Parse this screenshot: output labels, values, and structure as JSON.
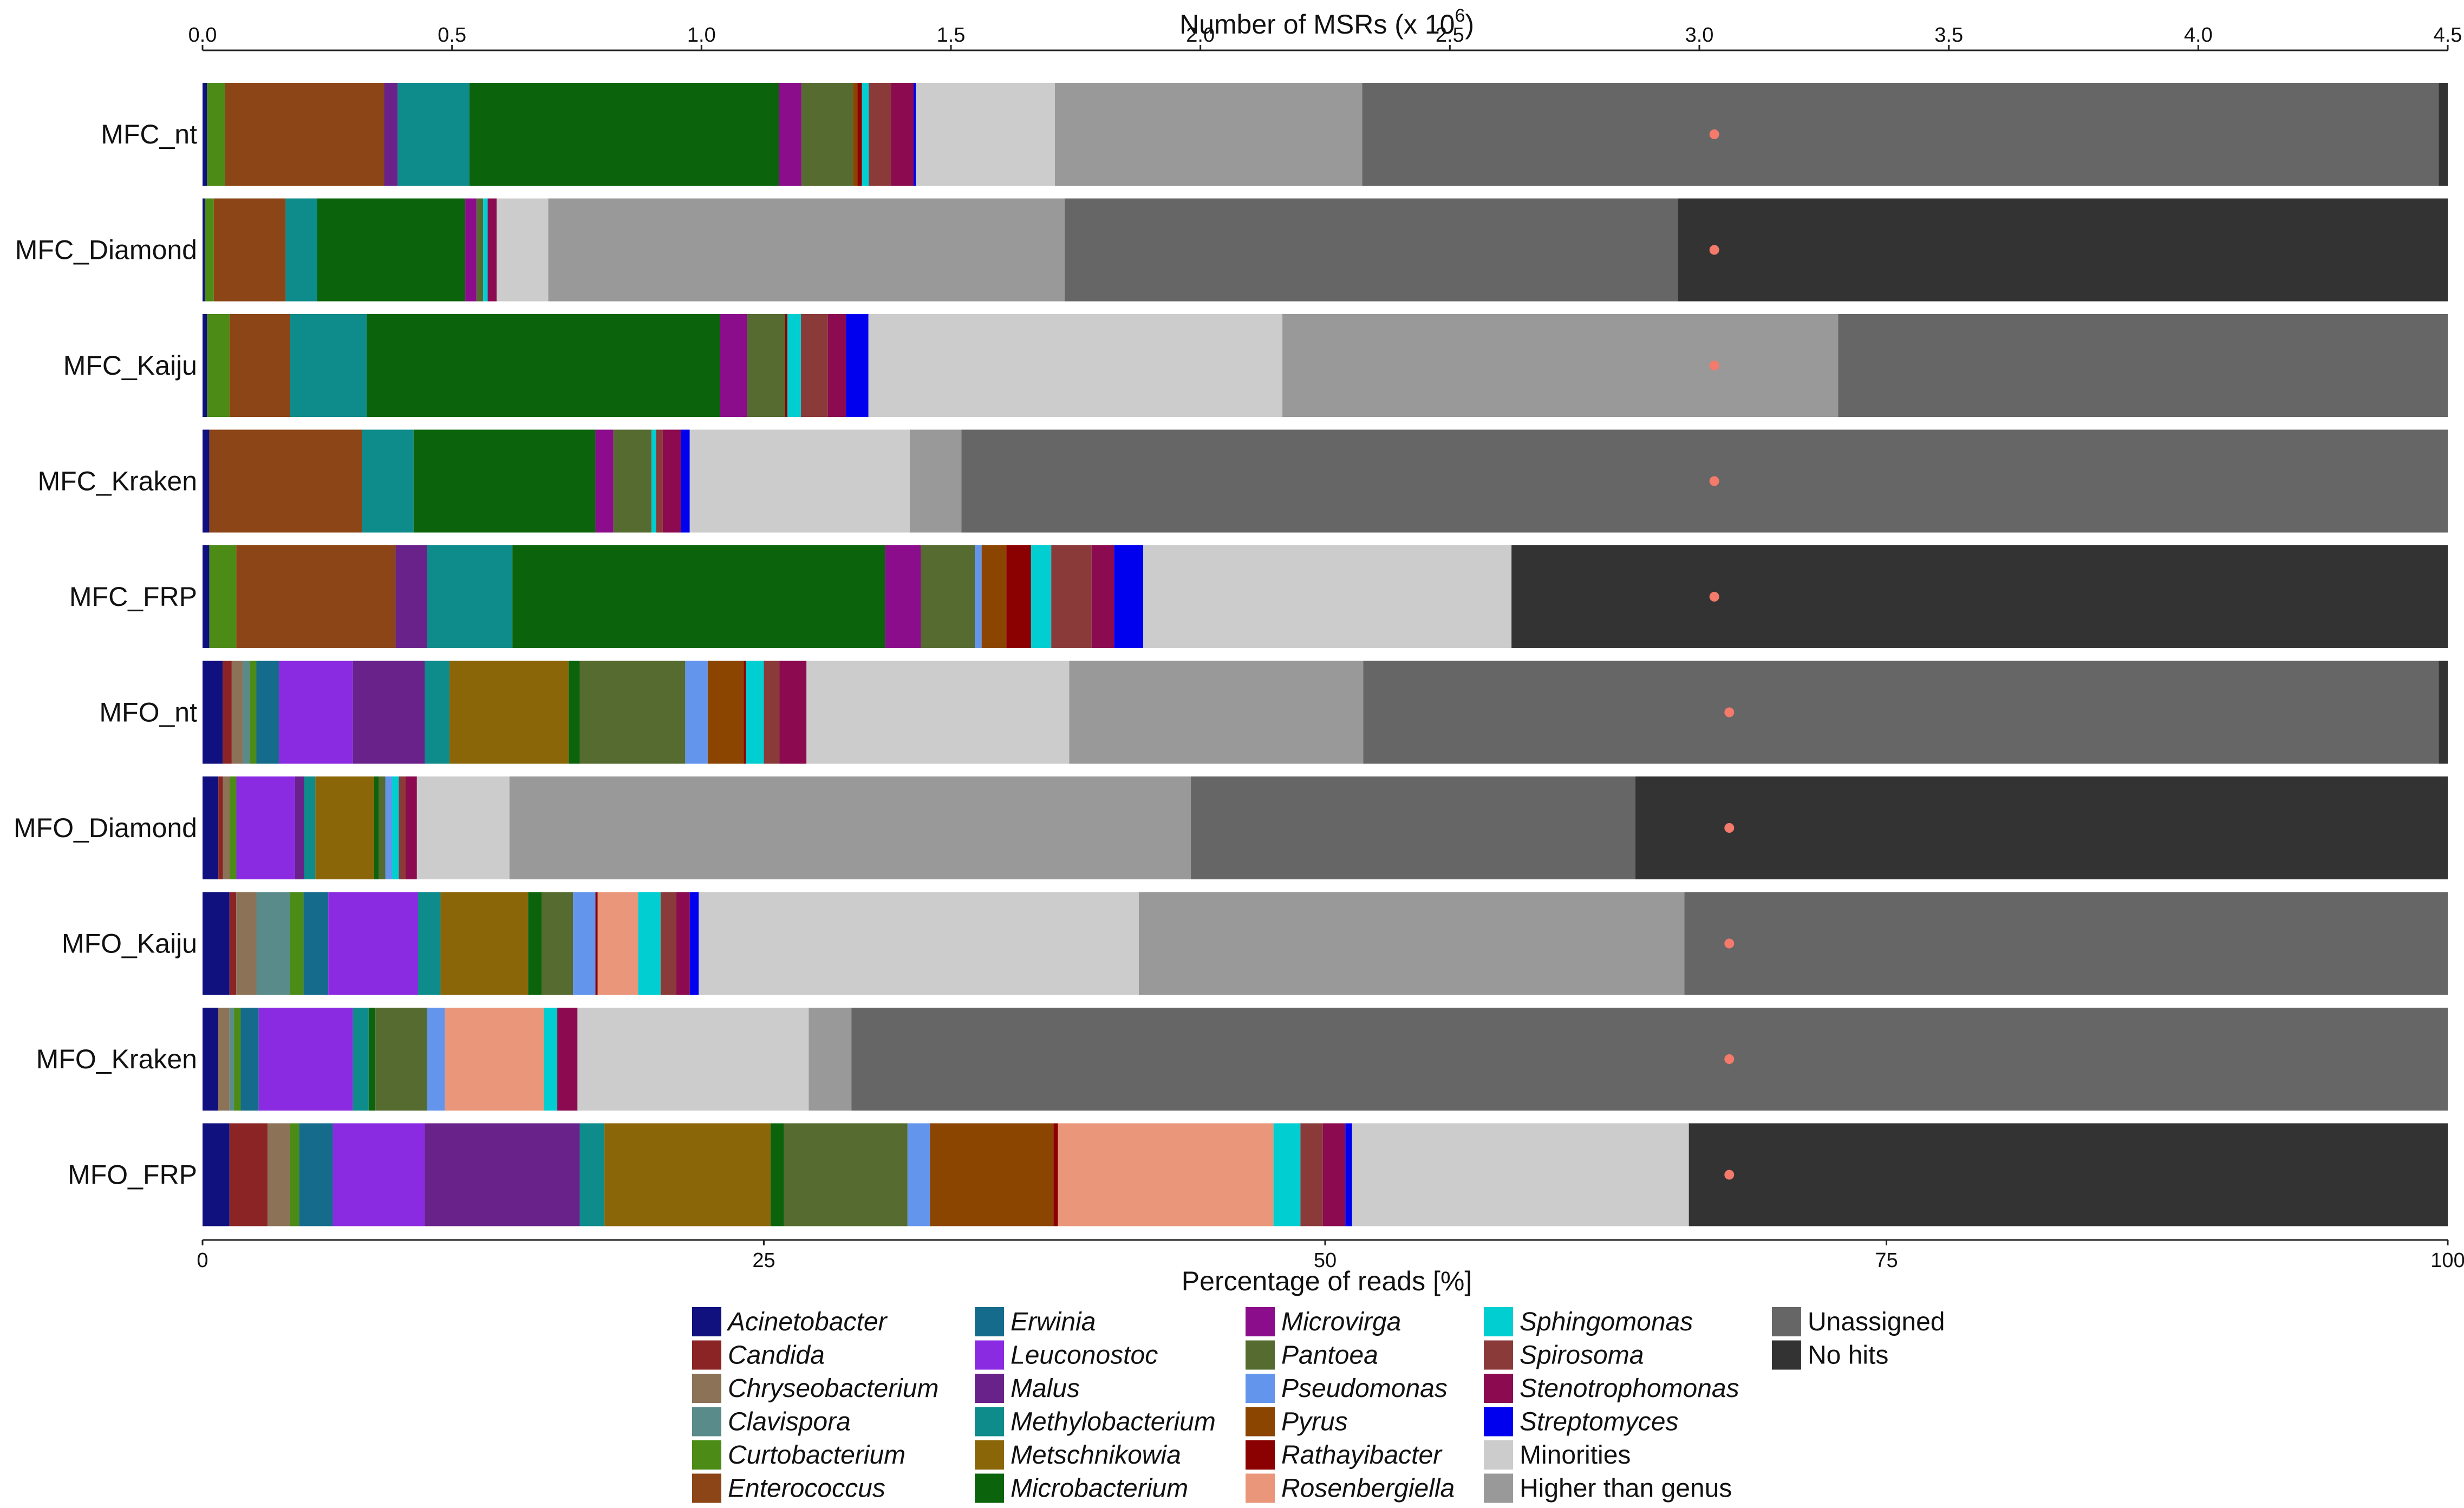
{
  "chart_data": {
    "type": "bar",
    "orientation": "horizontal",
    "stacked": true,
    "top_axis_title": "Number of MSRs (x 10",
    "top_axis_title_sup": "6",
    "top_axis_title_close": ")",
    "top_ticks": [
      "0.0",
      "0.5",
      "1.0",
      "1.5",
      "2.0",
      "2.5",
      "3.0",
      "3.5",
      "4.0",
      "4.5"
    ],
    "top_range": [
      0,
      4.5
    ],
    "xlabel": "Percentage of reads [%]",
    "bottom_ticks": [
      "0",
      "25",
      "50",
      "75",
      "100"
    ],
    "xlim": [
      0,
      100
    ],
    "legend_position": "bottom",
    "colors": {
      "Acinetobacter": "#10107f",
      "Candida": "#8b2525",
      "Chryseobacterium": "#8c7257",
      "Clavispora": "#5a8b8b",
      "Curtobacterium": "#4b8b16",
      "Enterococcus": "#8b4516",
      "Erwinia": "#156b8b",
      "Leuconostoc": "#8a2be2",
      "Malus": "#6a228b",
      "Methylobacterium": "#0e8b8b",
      "Metschnikowia": "#8b6609",
      "Microbacterium": "#0b640b",
      "Microvirga": "#8b0d8b",
      "Pantoea": "#556b2f",
      "Pseudomonas": "#6495ed",
      "Pyrus": "#8b4500",
      "Rathayibacter": "#8b0000",
      "Rosenbergiella": "#e9967a",
      "Sphingomonas": "#00ced1",
      "Spirosoma": "#8b3a3a",
      "Stenotrophomonas": "#8b0a50",
      "Streptomyces": "#0000ee",
      "Minorities": "#cccccc",
      "Higher than genus": "#999999",
      "Unassigned": "#666666",
      "No hits": "#333333"
    },
    "legend": [
      [
        "Acinetobacter",
        "Candida",
        "Chryseobacterium",
        "Clavispora",
        "Curtobacterium",
        "Enterococcus"
      ],
      [
        "Erwinia",
        "Leuconostoc",
        "Malus",
        "Methylobacterium",
        "Metschnikowia",
        "Microbacterium"
      ],
      [
        "Microvirga",
        "Pantoea",
        "Pseudomonas",
        "Pyrus",
        "Rathayibacter",
        "Rosenbergiella"
      ],
      [
        "Sphingomonas",
        "Spirosoma",
        "Stenotrophomonas",
        "Streptomyces",
        "Minorities",
        "Higher than genus"
      ],
      [
        "Unassigned",
        "No hits"
      ]
    ],
    "italic_legend": [
      "Acinetobacter",
      "Candida",
      "Chryseobacterium",
      "Clavispora",
      "Curtobacterium",
      "Enterococcus",
      "Erwinia",
      "Leuconostoc",
      "Malus",
      "Methylobacterium",
      "Metschnikowia",
      "Microbacterium",
      "Microvirga",
      "Pantoea",
      "Pseudomonas",
      "Pyrus",
      "Rathayibacter",
      "Rosenbergiella",
      "Sphingomonas",
      "Spirosoma",
      "Stenotrophomonas",
      "Streptomyces"
    ],
    "series_note": "marker = number of MSRs (x 10^6) on top axis",
    "bars": [
      {
        "label": "MFC_nt",
        "msrs": 3.03,
        "segments": [
          [
            "Acinetobacter",
            0.2
          ],
          [
            "Curtobacterium",
            0.8
          ],
          [
            "Enterococcus",
            7.1
          ],
          [
            "Malus",
            0.6
          ],
          [
            "Methylobacterium",
            3.2
          ],
          [
            "Microbacterium",
            13.8
          ],
          [
            "Microvirga",
            1.0
          ],
          [
            "Pantoea",
            2.3
          ],
          [
            "Pyrus",
            0.2
          ],
          [
            "Rathayibacter",
            0.2
          ],
          [
            "Sphingomonas",
            0.3
          ],
          [
            "Spirosoma",
            1.0
          ],
          [
            "Stenotrophomonas",
            1.0
          ],
          [
            "Streptomyces",
            0.1
          ],
          [
            "Minorities",
            6.2
          ],
          [
            "Higher than genus",
            13.7
          ],
          [
            "Unassigned",
            48.0
          ],
          [
            "No hits",
            0.4
          ]
        ]
      },
      {
        "label": "MFC_Diamond",
        "msrs": 3.03,
        "segments": [
          [
            "Acinetobacter",
            0.1
          ],
          [
            "Curtobacterium",
            0.4
          ],
          [
            "Enterococcus",
            3.2
          ],
          [
            "Methylobacterium",
            1.4
          ],
          [
            "Microbacterium",
            6.6
          ],
          [
            "Microvirga",
            0.5
          ],
          [
            "Pantoea",
            0.3
          ],
          [
            "Sphingomonas",
            0.2
          ],
          [
            "Stenotrophomonas",
            0.4
          ],
          [
            "Minorities",
            2.3
          ],
          [
            "Higher than genus",
            23.0
          ],
          [
            "Unassigned",
            27.3
          ],
          [
            "No hits",
            34.3
          ]
        ]
      },
      {
        "label": "MFC_Kaiju",
        "msrs": 3.03,
        "segments": [
          [
            "Acinetobacter",
            0.2
          ],
          [
            "Curtobacterium",
            1.0
          ],
          [
            "Enterococcus",
            2.7
          ],
          [
            "Methylobacterium",
            3.4
          ],
          [
            "Microbacterium",
            15.7
          ],
          [
            "Microvirga",
            1.2
          ],
          [
            "Pantoea",
            1.7
          ],
          [
            "Rathayibacter",
            0.1
          ],
          [
            "Sphingomonas",
            0.6
          ],
          [
            "Spirosoma",
            1.2
          ],
          [
            "Stenotrophomonas",
            0.8
          ],
          [
            "Streptomyces",
            1.0
          ],
          [
            "Minorities",
            18.4
          ],
          [
            "Higher than genus",
            24.7
          ],
          [
            "Unassigned",
            27.1
          ]
        ]
      },
      {
        "label": "MFC_Kraken",
        "msrs": 3.03,
        "segments": [
          [
            "Acinetobacter",
            0.3
          ],
          [
            "Enterococcus",
            6.8
          ],
          [
            "Methylobacterium",
            2.3
          ],
          [
            "Microbacterium",
            8.1
          ],
          [
            "Microvirga",
            0.8
          ],
          [
            "Pantoea",
            1.7
          ],
          [
            "Sphingomonas",
            0.2
          ],
          [
            "Spirosoma",
            0.3
          ],
          [
            "Stenotrophomonas",
            0.8
          ],
          [
            "Streptomyces",
            0.4
          ],
          [
            "Minorities",
            9.8
          ],
          [
            "Higher than genus",
            2.3
          ],
          [
            "Unassigned",
            66.2
          ]
        ]
      },
      {
        "label": "MFC_FRP",
        "msrs": 3.03,
        "segments": [
          [
            "Acinetobacter",
            0.3
          ],
          [
            "Curtobacterium",
            1.2
          ],
          [
            "Enterococcus",
            7.1
          ],
          [
            "Malus",
            1.4
          ],
          [
            "Methylobacterium",
            3.8
          ],
          [
            "Microbacterium",
            16.6
          ],
          [
            "Microvirga",
            1.6
          ],
          [
            "Pantoea",
            2.4
          ],
          [
            "Pseudomonas",
            0.3
          ],
          [
            "Pyrus",
            1.1
          ],
          [
            "Rathayibacter",
            1.1
          ],
          [
            "Sphingomonas",
            0.9
          ],
          [
            "Spirosoma",
            1.8
          ],
          [
            "Stenotrophomonas",
            1.0
          ],
          [
            "Streptomyces",
            1.3
          ],
          [
            "Minorities",
            16.4
          ],
          [
            "No hits",
            41.7
          ]
        ]
      },
      {
        "label": "MFO_nt",
        "msrs": 3.06,
        "segments": [
          [
            "Acinetobacter",
            0.9
          ],
          [
            "Candida",
            0.4
          ],
          [
            "Chryseobacterium",
            0.5
          ],
          [
            "Clavispora",
            0.3
          ],
          [
            "Curtobacterium",
            0.3
          ],
          [
            "Erwinia",
            1.0
          ],
          [
            "Leuconostoc",
            3.3
          ],
          [
            "Malus",
            3.2
          ],
          [
            "Methylobacterium",
            1.1
          ],
          [
            "Metschnikowia",
            5.3
          ],
          [
            "Microbacterium",
            0.5
          ],
          [
            "Pantoea",
            4.7
          ],
          [
            "Pseudomonas",
            1.0
          ],
          [
            "Pyrus",
            1.6
          ],
          [
            "Rathayibacter",
            0.1
          ],
          [
            "Sphingomonas",
            0.8
          ],
          [
            "Spirosoma",
            0.7
          ],
          [
            "Stenotrophomonas",
            1.2
          ],
          [
            "Minorities",
            11.7
          ],
          [
            "Higher than genus",
            13.1
          ],
          [
            "Unassigned",
            47.9
          ],
          [
            "No hits",
            0.4
          ]
        ]
      },
      {
        "label": "MFO_Diamond",
        "msrs": 3.06,
        "segments": [
          [
            "Acinetobacter",
            0.7
          ],
          [
            "Candida",
            0.2
          ],
          [
            "Chryseobacterium",
            0.3
          ],
          [
            "Curtobacterium",
            0.3
          ],
          [
            "Leuconostoc",
            2.6
          ],
          [
            "Malus",
            0.4
          ],
          [
            "Methylobacterium",
            0.5
          ],
          [
            "Metschnikowia",
            2.6
          ],
          [
            "Microbacterium",
            0.2
          ],
          [
            "Pantoea",
            0.3
          ],
          [
            "Pseudomonas",
            0.3
          ],
          [
            "Sphingomonas",
            0.3
          ],
          [
            "Spirosoma",
            0.3
          ],
          [
            "Stenotrophomonas",
            0.5
          ],
          [
            "Minorities",
            4.1
          ],
          [
            "Higher than genus",
            30.2
          ],
          [
            "Unassigned",
            19.7
          ],
          [
            "No hits",
            36.0
          ]
        ]
      },
      {
        "label": "MFO_Kaiju",
        "msrs": 3.06,
        "segments": [
          [
            "Acinetobacter",
            1.2
          ],
          [
            "Candida",
            0.3
          ],
          [
            "Chryseobacterium",
            0.9
          ],
          [
            "Clavispora",
            1.5
          ],
          [
            "Curtobacterium",
            0.6
          ],
          [
            "Erwinia",
            1.1
          ],
          [
            "Leuconostoc",
            4.0
          ],
          [
            "Methylobacterium",
            1.0
          ],
          [
            "Metschnikowia",
            3.9
          ],
          [
            "Microbacterium",
            0.6
          ],
          [
            "Pantoea",
            1.4
          ],
          [
            "Pseudomonas",
            1.0
          ],
          [
            "Rathayibacter",
            0.1
          ],
          [
            "Rosenbergiella",
            1.8
          ],
          [
            "Sphingomonas",
            1.0
          ],
          [
            "Spirosoma",
            0.7
          ],
          [
            "Stenotrophomonas",
            0.6
          ],
          [
            "Streptomyces",
            0.4
          ],
          [
            "Minorities",
            19.6
          ],
          [
            "Higher than genus",
            24.3
          ],
          [
            "Unassigned",
            34.0
          ]
        ]
      },
      {
        "label": "MFO_Kraken",
        "msrs": 3.06,
        "segments": [
          [
            "Acinetobacter",
            0.7
          ],
          [
            "Chryseobacterium",
            0.5
          ],
          [
            "Clavispora",
            0.2
          ],
          [
            "Curtobacterium",
            0.3
          ],
          [
            "Erwinia",
            0.8
          ],
          [
            "Leuconostoc",
            4.2
          ],
          [
            "Methylobacterium",
            0.7
          ],
          [
            "Microbacterium",
            0.3
          ],
          [
            "Pantoea",
            2.3
          ],
          [
            "Pseudomonas",
            0.8
          ],
          [
            "Rosenbergiella",
            4.4
          ],
          [
            "Sphingomonas",
            0.6
          ],
          [
            "Stenotrophomonas",
            0.9
          ],
          [
            "Minorities",
            10.3
          ],
          [
            "Higher than genus",
            1.9
          ],
          [
            "Unassigned",
            71.1
          ]
        ]
      },
      {
        "label": "MFO_FRP",
        "msrs": 3.06,
        "segments": [
          [
            "Acinetobacter",
            1.2
          ],
          [
            "Candida",
            1.7
          ],
          [
            "Chryseobacterium",
            1.0
          ],
          [
            "Curtobacterium",
            0.4
          ],
          [
            "Erwinia",
            1.5
          ],
          [
            "Leuconostoc",
            4.1
          ],
          [
            "Malus",
            6.9
          ],
          [
            "Methylobacterium",
            1.1
          ],
          [
            "Metschnikowia",
            7.4
          ],
          [
            "Microbacterium",
            0.6
          ],
          [
            "Pantoea",
            5.5
          ],
          [
            "Pseudomonas",
            1.0
          ],
          [
            "Pyrus",
            5.5
          ],
          [
            "Rathayibacter",
            0.2
          ],
          [
            "Rosenbergiella",
            9.6
          ],
          [
            "Sphingomonas",
            1.2
          ],
          [
            "Spirosoma",
            1.0
          ],
          [
            "Stenotrophomonas",
            1.0
          ],
          [
            "Streptomyces",
            0.3
          ],
          [
            "Minorities",
            15.0
          ],
          [
            "No hits",
            33.8
          ]
        ]
      }
    ]
  }
}
